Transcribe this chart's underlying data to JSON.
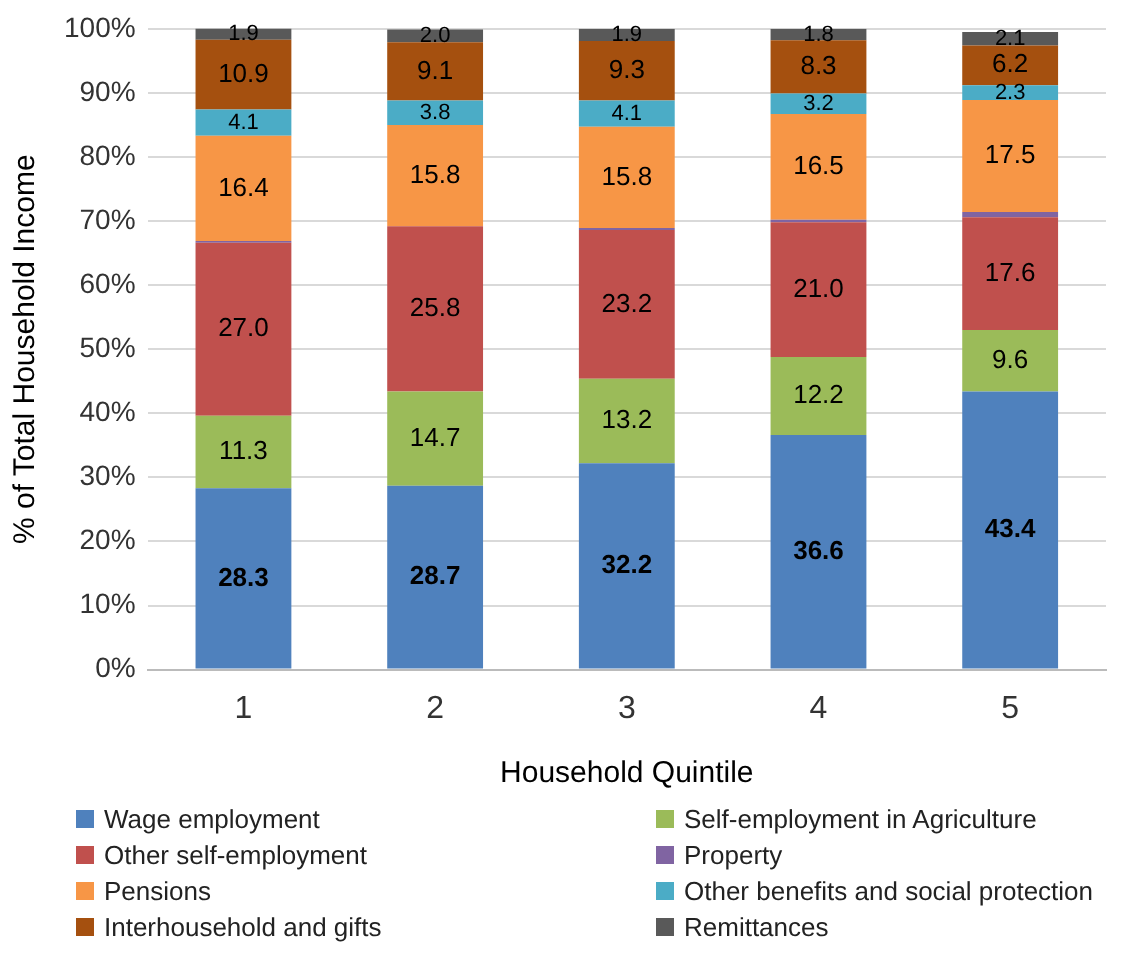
{
  "chart_data": {
    "type": "bar",
    "stacked": true,
    "xlabel": "Household Quintile",
    "ylabel": "% of Total Household Income",
    "categories": [
      "1",
      "2",
      "3",
      "4",
      "5"
    ],
    "series": [
      {
        "name": "Wage employment",
        "color": "#4f81bd",
        "values": [
          28.3,
          28.7,
          32.2,
          36.6,
          43.4
        ],
        "value_labels": [
          "28.3",
          "28.7",
          "32.2",
          "36.6",
          "43.4"
        ]
      },
      {
        "name": "Self-employment in Agriculture",
        "color": "#9bbb59",
        "values": [
          11.3,
          14.7,
          13.2,
          12.2,
          9.6
        ],
        "value_labels": [
          "11.3",
          "14.7",
          "13.2",
          "12.2",
          "9.6"
        ]
      },
      {
        "name": "Other self-employment",
        "color": "#c0504d",
        "values": [
          27.0,
          25.8,
          23.2,
          21.0,
          17.6
        ],
        "value_labels": [
          "27.0",
          "25.8",
          "23.2",
          "21.0",
          "17.6"
        ]
      },
      {
        "name": "Property",
        "color": "#8064a2",
        "values": [
          0.3,
          null,
          0.3,
          0.4,
          0.8
        ]
      },
      {
        "name": "Pensions",
        "color": "#f79646",
        "values": [
          16.4,
          15.8,
          15.8,
          16.5,
          17.5
        ],
        "value_labels": [
          "16.4",
          "15.8",
          "15.8",
          "16.5",
          "17.5"
        ]
      },
      {
        "name": "Other benefits and social protection",
        "color": "#4bacc6",
        "values": [
          4.1,
          3.8,
          4.1,
          3.2,
          2.3
        ],
        "value_labels": [
          "4.1",
          "3.8",
          "4.1",
          "3.2",
          "2.3"
        ]
      },
      {
        "name": "Interhousehold and gifts",
        "color": "#a5500f",
        "values": [
          10.9,
          9.1,
          9.3,
          8.3,
          6.2
        ],
        "value_labels": [
          "10.9",
          "9.1",
          "9.3",
          "8.3",
          "6.2"
        ]
      },
      {
        "name": "Remittances",
        "color": "#595959",
        "values": [
          1.9,
          2.0,
          1.9,
          1.8,
          2.1
        ],
        "value_labels": [
          "1.9",
          "2.0",
          "1.9",
          "1.8",
          "2.1"
        ]
      }
    ],
    "ylim": [
      0,
      100
    ],
    "yticks": [
      {
        "value": 0,
        "label": "0%"
      },
      {
        "value": 10,
        "label": "10%"
      },
      {
        "value": 20,
        "label": "20%"
      },
      {
        "value": 30,
        "label": "30%"
      },
      {
        "value": 40,
        "label": "40%"
      },
      {
        "value": 50,
        "label": "50%"
      },
      {
        "value": 60,
        "label": "60%"
      },
      {
        "value": 70,
        "label": "70%"
      },
      {
        "value": 80,
        "label": "80%"
      },
      {
        "value": 90,
        "label": "90%"
      },
      {
        "value": 100,
        "label": "100%"
      }
    ],
    "grid": "y",
    "legend": "bottom"
  }
}
